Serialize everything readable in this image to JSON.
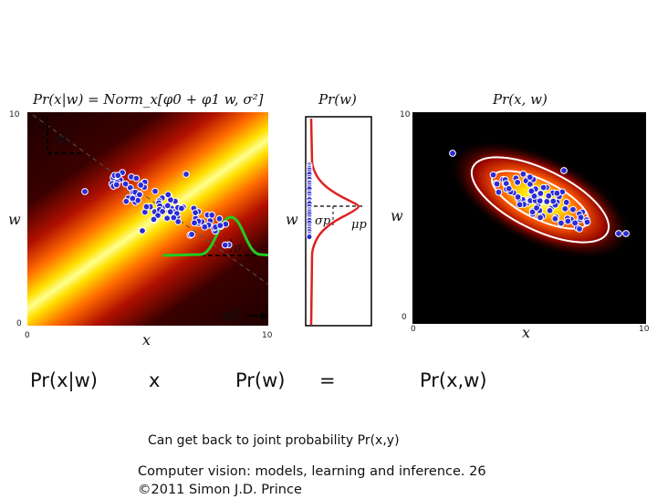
{
  "panels": {
    "left": {
      "title": "Pr(x|w) = Norm_x[φ0 + φ1 w, σ²]",
      "xlabel": "x",
      "ylabel": "w",
      "ticks": {
        "x0": "0",
        "x1": "10",
        "y0": "0",
        "y1": "10"
      },
      "annot_phi1": "φ1",
      "annot_phi0": "φ0",
      "annot_sigma": "σ"
    },
    "middle": {
      "title": "Pr(w)",
      "ylabel": "w",
      "annot_sigma_p": "σp",
      "annot_mu_p": "μp"
    },
    "right": {
      "title": "Pr(x, w)",
      "xlabel": "x",
      "ylabel": "w",
      "ticks": {
        "x0": "0",
        "x1": "10",
        "y0": "0",
        "y1": "10"
      }
    }
  },
  "equation": {
    "term1": "Pr(x|w)",
    "op1": "x",
    "term2": "Pr(w)",
    "op2": "=",
    "term3": "Pr(x,w)"
  },
  "caption": "Can get back to joint probability Pr(x,y)",
  "footer": {
    "line1": "Computer vision: models, learning and inference.  26",
    "line2": "©2011 Simon J.D. Prince"
  },
  "colors": {
    "dot_fill": "#2b2bd6",
    "curve_green": "#22cc22",
    "curve_red": "#dd2222",
    "ellipse": "#ffffff"
  }
}
